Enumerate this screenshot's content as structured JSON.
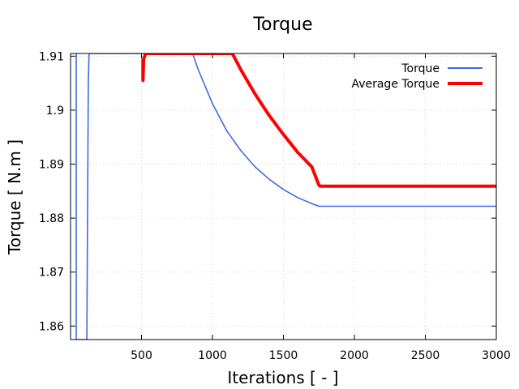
{
  "chart_data": {
    "type": "line",
    "title": "Torque",
    "xlabel": "Iterations [ - ]",
    "ylabel": "Torque [ N.m ]",
    "xlim": [
      0,
      3000
    ],
    "ylim": [
      1.8575,
      1.9105
    ],
    "x_ticks": [
      500,
      1000,
      1500,
      2000,
      2500,
      3000
    ],
    "x_tick_labels": [
      "500",
      "1000",
      "1500",
      "2000",
      "2500",
      "3000"
    ],
    "y_ticks": [
      1.86,
      1.87,
      1.88,
      1.89,
      1.9,
      1.91
    ],
    "y_tick_labels": [
      "1.86",
      "1.87",
      "1.88",
      "1.89",
      "1.9",
      "1.91"
    ],
    "grid": true,
    "legend_position": "top-right",
    "series": [
      {
        "name": "Torque",
        "color": "#4169e1",
        "x": [
          40,
          40,
          115,
          125,
          130,
          860,
          900,
          1000,
          1100,
          1200,
          1300,
          1400,
          1500,
          1600,
          1700,
          1750,
          1800,
          2000,
          2500,
          3000
        ],
        "y": [
          1.9105,
          1.8575,
          1.8575,
          1.905,
          1.9105,
          1.9105,
          1.9075,
          1.9012,
          1.8962,
          1.8925,
          1.8895,
          1.8872,
          1.8853,
          1.8838,
          1.8827,
          1.8822,
          1.8822,
          1.8822,
          1.8822,
          1.8822
        ]
      },
      {
        "name": "Average Torque",
        "color": "#ff0000",
        "x": [
          510,
          510,
          515,
          530,
          1140,
          1200,
          1300,
          1400,
          1500,
          1600,
          1700,
          1750,
          1760,
          2000,
          2500,
          3000
        ],
        "y": [
          1.9095,
          1.9055,
          1.9095,
          1.9105,
          1.9105,
          1.9075,
          1.903,
          1.899,
          1.8955,
          1.8922,
          1.8895,
          1.8861,
          1.8859,
          1.8859,
          1.8859,
          1.8859
        ]
      }
    ]
  }
}
